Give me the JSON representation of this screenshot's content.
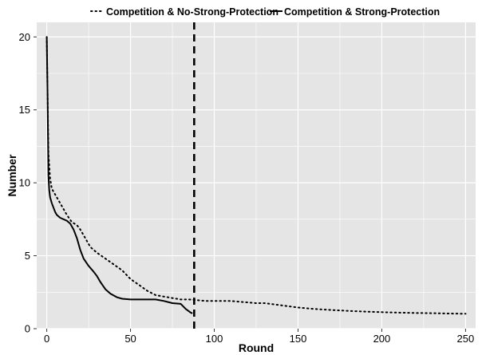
{
  "chart_data": {
    "type": "line",
    "xlabel": "Round",
    "ylabel": "Number",
    "xlim": [
      -6,
      256
    ],
    "ylim": [
      0,
      21
    ],
    "x_ticks": [
      0,
      50,
      100,
      150,
      200,
      250
    ],
    "y_ticks": [
      0,
      5,
      10,
      15,
      20
    ],
    "grid": true,
    "legend_position": "top",
    "colors": {
      "panel": "#e5e5e5",
      "grid": "#ffffff",
      "line": "#000000",
      "axis_text": "#000000"
    },
    "vertical_line": {
      "x": 88,
      "style": "dashed"
    },
    "series": [
      {
        "name": "Competition & No-Strong-Protection",
        "style": "dotted",
        "x": [
          0,
          1,
          2,
          3,
          5,
          8,
          12,
          15,
          18,
          20,
          23,
          26,
          30,
          35,
          40,
          45,
          50,
          55,
          60,
          65,
          70,
          75,
          80,
          85,
          90,
          95,
          100,
          110,
          115,
          120,
          125,
          130,
          140,
          150,
          160,
          170,
          180,
          190,
          200,
          210,
          220,
          230,
          240,
          250
        ],
        "y": [
          20,
          12,
          10.3,
          9.6,
          9.2,
          8.6,
          7.8,
          7.3,
          7.1,
          6.8,
          6.2,
          5.6,
          5.2,
          4.8,
          4.4,
          4.0,
          3.4,
          3.0,
          2.6,
          2.3,
          2.2,
          2.1,
          2.0,
          2.0,
          1.95,
          1.9,
          1.9,
          1.9,
          1.85,
          1.8,
          1.75,
          1.75,
          1.6,
          1.45,
          1.35,
          1.28,
          1.22,
          1.17,
          1.13,
          1.1,
          1.08,
          1.06,
          1.04,
          1.02
        ]
      },
      {
        "name": "Competition & Strong-Protection",
        "style": "solid",
        "x": [
          0,
          0.5,
          1,
          1.5,
          2,
          3,
          4,
          5,
          6,
          8,
          10,
          12,
          14,
          16,
          18,
          20,
          22,
          25,
          28,
          30,
          32,
          35,
          38,
          42,
          45,
          50,
          55,
          60,
          65,
          70,
          75,
          80,
          83,
          86,
          87
        ],
        "y": [
          20,
          16,
          10.5,
          9.5,
          9.0,
          8.6,
          8.3,
          8.0,
          7.8,
          7.6,
          7.5,
          7.4,
          7.2,
          6.8,
          6.2,
          5.4,
          4.8,
          4.3,
          3.9,
          3.6,
          3.2,
          2.7,
          2.4,
          2.15,
          2.05,
          2.0,
          2.0,
          2.0,
          2.0,
          1.9,
          1.75,
          1.7,
          1.35,
          1.1,
          1.05
        ]
      }
    ]
  }
}
